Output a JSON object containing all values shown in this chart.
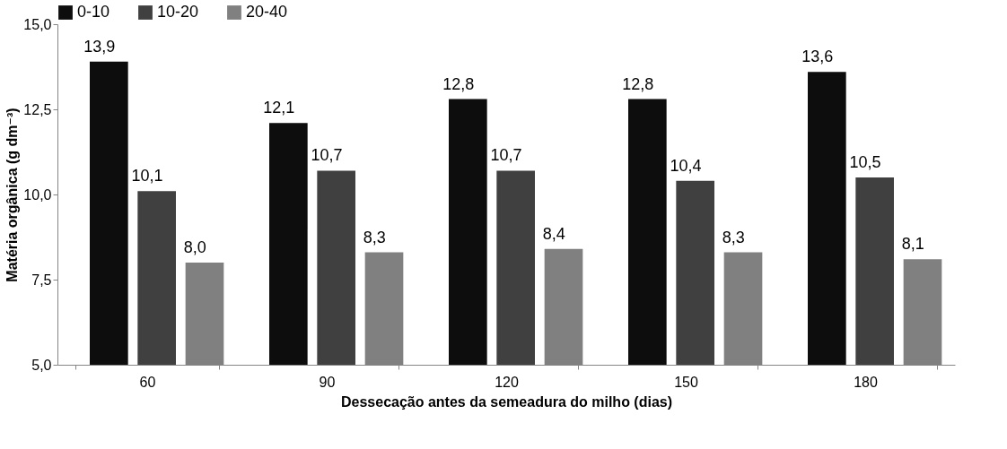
{
  "chart_data": {
    "type": "bar",
    "xlabel": "Dessecação antes da semeadura do milho (dias)",
    "ylabel": "Matéria orgânica (g dm⁻³)",
    "categories": [
      "60",
      "90",
      "120",
      "150",
      "180"
    ],
    "series": [
      {
        "name": "0-10",
        "color": "#0d0d0d",
        "values": [
          13.9,
          12.1,
          12.8,
          12.8,
          13.6
        ],
        "value_labels": [
          "13,9",
          "12,1",
          "12,8",
          "12,8",
          "13,6"
        ]
      },
      {
        "name": "10-20",
        "color": "#404040",
        "values": [
          10.1,
          10.7,
          10.7,
          10.4,
          10.5
        ],
        "value_labels": [
          "10,1",
          "10,7",
          "10,7",
          "10,4",
          "10,5"
        ]
      },
      {
        "name": "20-40",
        "color": "#808080",
        "values": [
          8.0,
          8.3,
          8.4,
          8.3,
          8.1
        ],
        "value_labels": [
          "8,0",
          "8,3",
          "8,4",
          "8,3",
          "8,1"
        ]
      }
    ],
    "ylim": [
      5,
      15
    ],
    "yticks": [
      {
        "value": 5,
        "label": "5,0"
      },
      {
        "value": 7.5,
        "label": "7,5"
      },
      {
        "value": 10,
        "label": "10,0"
      },
      {
        "value": 12.5,
        "label": "12,5"
      },
      {
        "value": 15,
        "label": "15,0"
      }
    ],
    "grid": false,
    "legend": "top"
  }
}
